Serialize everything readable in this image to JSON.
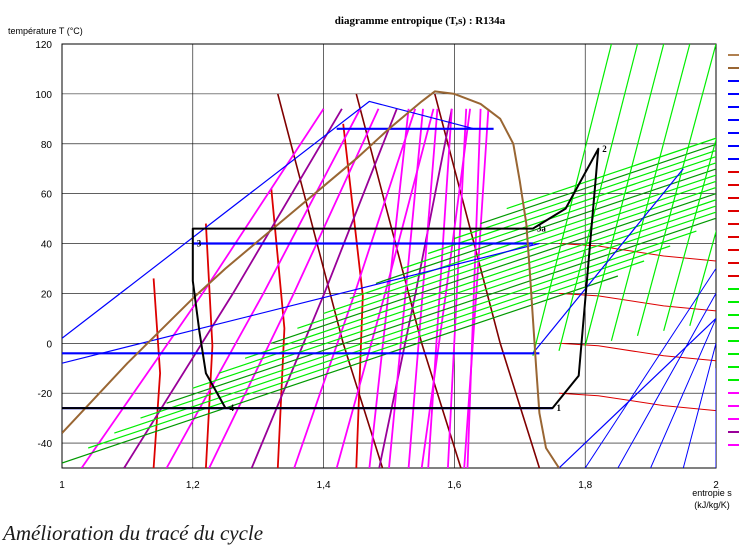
{
  "chart_data": {
    "type": "line",
    "title": "diagramme entropique (T,s) : R134a",
    "ylabel": "température T (°C)",
    "xlabel_line1": "entropie s",
    "xlabel_line2": "(kJ/kg/K)",
    "xlim": [
      1,
      2
    ],
    "ylim": [
      -50,
      120
    ],
    "xticks": [
      "1",
      "1,2",
      "1,4",
      "1,6",
      "1,8",
      "2"
    ],
    "yticks": [
      "120",
      "100",
      "80",
      "60",
      "40",
      "20",
      "0",
      "-20",
      "-40"
    ],
    "grid": true,
    "saturation_dome": [
      [
        1,
        -36
      ],
      [
        1.05,
        -22
      ],
      [
        1.1,
        -8
      ],
      [
        1.15,
        5
      ],
      [
        1.2,
        18
      ],
      [
        1.25,
        30
      ],
      [
        1.3,
        41
      ],
      [
        1.35,
        52
      ],
      [
        1.4,
        63
      ],
      [
        1.45,
        74
      ],
      [
        1.5,
        86
      ],
      [
        1.55,
        97
      ],
      [
        1.57,
        101
      ],
      [
        1.6,
        100
      ],
      [
        1.64,
        96
      ],
      [
        1.67,
        90
      ],
      [
        1.69,
        80
      ],
      [
        1.7,
        65
      ],
      [
        1.71,
        48
      ],
      [
        1.715,
        30
      ],
      [
        1.72,
        10
      ],
      [
        1.725,
        -10
      ],
      [
        1.73,
        -28
      ],
      [
        1.74,
        -42
      ],
      [
        1.76,
        -50
      ]
    ],
    "cycle": {
      "points": [
        {
          "label": "1",
          "s": 1.75,
          "T": -26
        },
        {
          "label": "2",
          "s": 1.82,
          "T": 78
        },
        {
          "label": "3a",
          "s": 1.72,
          "T": 46
        },
        {
          "label": "3",
          "s": 1.2,
          "T": 40
        },
        {
          "label": "4",
          "s": 1.25,
          "T": -26
        }
      ],
      "path": [
        [
          1.2,
          40
        ],
        [
          1.2,
          46
        ],
        [
          1.72,
          46
        ],
        [
          1.77,
          54
        ],
        [
          1.82,
          78
        ],
        [
          1.79,
          -13
        ],
        [
          1.75,
          -26
        ],
        [
          1.0,
          -26
        ]
      ],
      "expansion": [
        [
          1.2,
          40
        ],
        [
          1.2,
          25
        ],
        [
          1.21,
          5
        ],
        [
          1.22,
          -12
        ],
        [
          1.25,
          -26
        ]
      ]
    },
    "colors": {
      "isobar": "#0000ff",
      "dome": "#996633",
      "isochore": "#dd0000",
      "isenthalp_light": "#ff00ff",
      "isenthalp_dark": "#990099",
      "quality": "#800000",
      "superheat": "#00ee00",
      "superheat_dark": "#009900",
      "cycle": "#000000",
      "legend_bars": [
        "#b08050",
        "#996633",
        "#0000ff",
        "#0000ff",
        "#0000ff",
        "#0000ff",
        "#0000ff",
        "#0000ff",
        "#0000ff",
        "#dd0000",
        "#dd0000",
        "#dd0000",
        "#dd0000",
        "#dd0000",
        "#dd0000",
        "#dd0000",
        "#dd0000",
        "#dd0000",
        "#00ee00",
        "#00ee00",
        "#00ee00",
        "#00ee00",
        "#00ee00",
        "#00ee00",
        "#00ee00",
        "#00ee00",
        "#ff00ff",
        "#ff00ff",
        "#ff00ff",
        "#990099",
        "#ff00ff"
      ]
    }
  },
  "caption": "Amélioration du tracé du cycle"
}
